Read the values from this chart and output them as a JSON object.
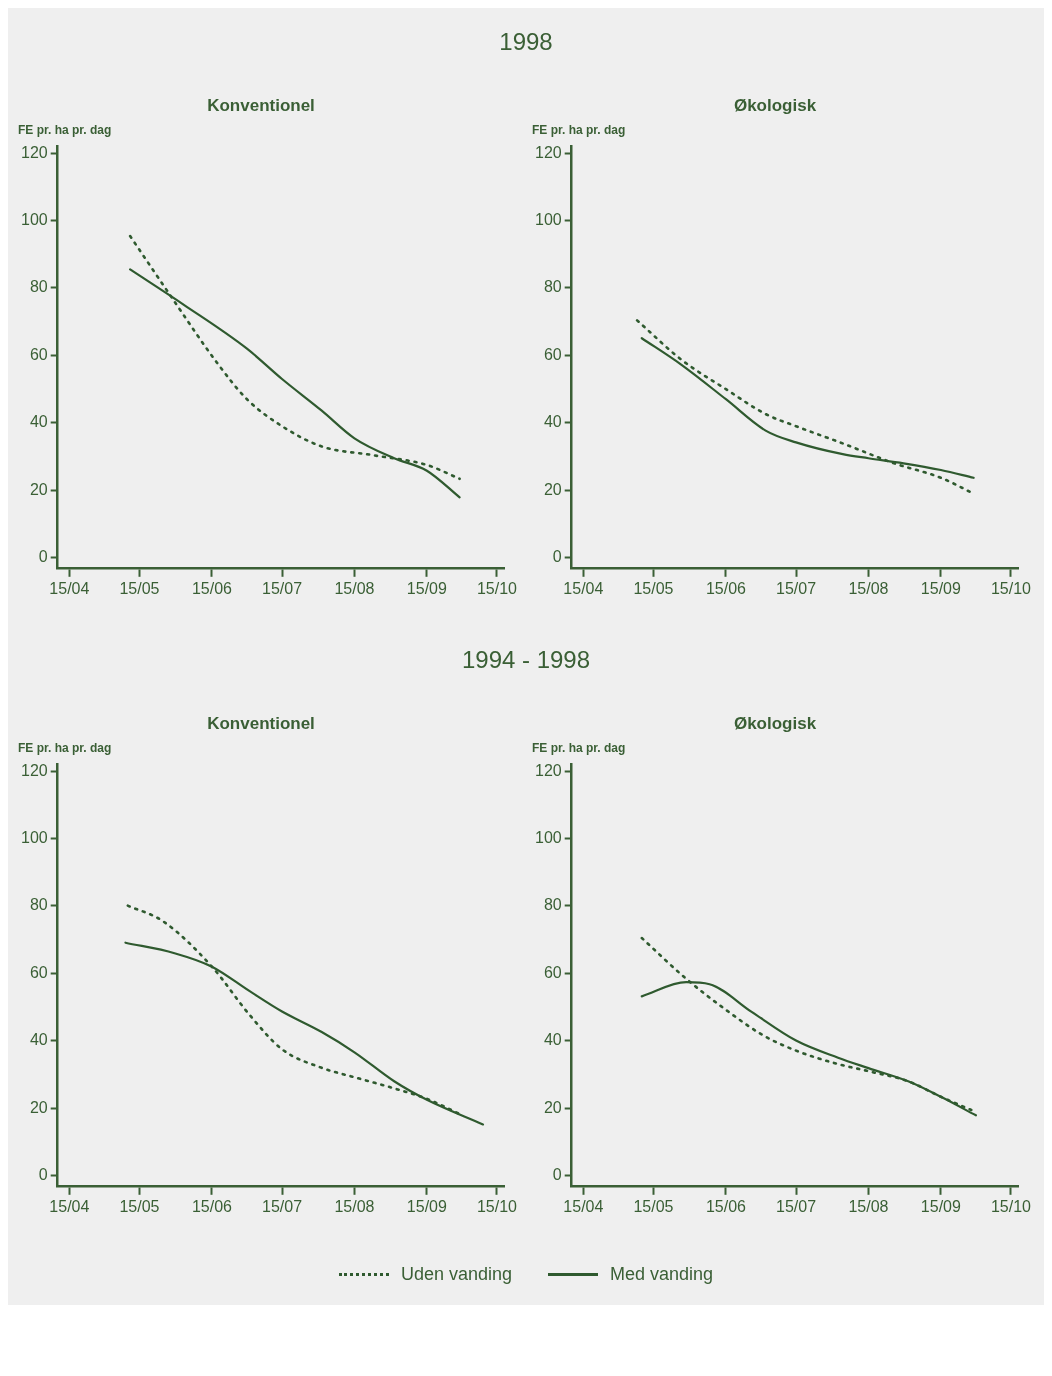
{
  "chart_data": [
    {
      "type": "line",
      "title": "Konventionel",
      "annotations": [
        "1998"
      ],
      "ylabel": "FE pr. ha pr. dag",
      "legend": "bottom",
      "xlim": [
        "--04-10",
        "--10-18"
      ],
      "xticks": [
        {
          "value": "--04-15",
          "label": "15/04"
        },
        {
          "value": "--05-15",
          "label": "15/05"
        },
        {
          "value": "--06-15",
          "label": "15/06"
        },
        {
          "value": "--07-15",
          "label": "15/07"
        },
        {
          "value": "--08-15",
          "label": "15/08"
        },
        {
          "value": "--09-15",
          "label": "15/09"
        },
        {
          "value": "--10-15",
          "label": "15/10"
        }
      ],
      "ylim": [
        -3,
        122
      ],
      "yticks": [
        0,
        20,
        40,
        60,
        80,
        100,
        120
      ],
      "grid": false,
      "marker": "none",
      "series": [
        {
          "name": "Uden vanding",
          "color": "#2f5a2f",
          "line_style": "dotted",
          "x": [
            "--05-11",
            "--05-28",
            "--06-17",
            "--06-30",
            "--07-15",
            "--08-01",
            "--08-23",
            "--09-15",
            "--09-29"
          ],
          "values": [
            95.4,
            78,
            58,
            47,
            39,
            33,
            30.4,
            27.5,
            23.4
          ]
        },
        {
          "name": "Med vanding",
          "color": "#2f5a2f",
          "line_style": "solid",
          "x": [
            "--05-11",
            "--06-03",
            "--06-30",
            "--07-15",
            "--08-01",
            "--08-15",
            "--09-01",
            "--09-15",
            "--09-29"
          ],
          "values": [
            85.5,
            75,
            62,
            53,
            43.6,
            35.4,
            29.5,
            25.8,
            17.9
          ]
        }
      ]
    },
    {
      "type": "line",
      "title": "Økologisk",
      "ylabel": "FE pr. ha pr. dag",
      "xlim": [
        "--04-10",
        "--10-18"
      ],
      "xticks": [
        {
          "value": "--04-15",
          "label": "15/04"
        },
        {
          "value": "--05-15",
          "label": "15/05"
        },
        {
          "value": "--06-15",
          "label": "15/06"
        },
        {
          "value": "--07-15",
          "label": "15/07"
        },
        {
          "value": "--08-15",
          "label": "15/08"
        },
        {
          "value": "--09-15",
          "label": "15/09"
        },
        {
          "value": "--10-15",
          "label": "15/10"
        }
      ],
      "ylim": [
        -3,
        122
      ],
      "yticks": [
        0,
        20,
        40,
        60,
        80,
        100,
        120
      ],
      "grid": false,
      "marker": "none",
      "series": [
        {
          "color": "#2f5a2f",
          "line_style": "dotted",
          "x": [
            "--05-08",
            "--05-27",
            "--06-15",
            "--07-02",
            "--07-15",
            "--08-04",
            "--08-26",
            "--09-15",
            "--09-29"
          ],
          "values": [
            70.4,
            58.7,
            50,
            42.6,
            39,
            33.9,
            28,
            23.7,
            19
          ]
        },
        {
          "color": "#2f5a2f",
          "line_style": "solid",
          "x": [
            "--05-10",
            "--05-27",
            "--06-15",
            "--07-02",
            "--07-15",
            "--08-04",
            "--08-15",
            "--08-30",
            "--09-15",
            "--09-29"
          ],
          "values": [
            65.1,
            57.2,
            47,
            37.7,
            34.2,
            30.7,
            29.5,
            28,
            26,
            23.7
          ]
        }
      ]
    },
    {
      "type": "line",
      "title": "Konventionel",
      "annotations": [
        "1994 - 1998"
      ],
      "ylabel": "FE pr. ha pr. dag",
      "xlim": [
        "--04-10",
        "--10-18"
      ],
      "xticks": [
        {
          "value": "--04-15",
          "label": "15/04"
        },
        {
          "value": "--05-15",
          "label": "15/05"
        },
        {
          "value": "--06-15",
          "label": "15/06"
        },
        {
          "value": "--07-15",
          "label": "15/07"
        },
        {
          "value": "--08-15",
          "label": "15/08"
        },
        {
          "value": "--09-15",
          "label": "15/09"
        },
        {
          "value": "--10-15",
          "label": "15/10"
        }
      ],
      "ylim": [
        -3,
        122
      ],
      "yticks": [
        0,
        20,
        40,
        60,
        80,
        100,
        120
      ],
      "grid": false,
      "marker": "none",
      "series": [
        {
          "color": "#2f5a2f",
          "line_style": "dotted",
          "x": [
            "--05-10",
            "--05-25",
            "--06-15",
            "--07-01",
            "--07-15",
            "--08-01",
            "--08-15",
            "--09-01",
            "--09-15",
            "--09-29"
          ],
          "values": [
            80.1,
            75.5,
            62,
            47.8,
            37.5,
            32,
            29.2,
            25.9,
            22.8,
            18.3
          ]
        },
        {
          "color": "#2f5a2f",
          "line_style": "solid",
          "x": [
            "--05-09",
            "--05-30",
            "--06-15",
            "--07-01",
            "--07-15",
            "--08-01",
            "--08-15",
            "--09-01",
            "--09-15",
            "--10-09"
          ],
          "values": [
            69.1,
            66,
            62,
            54.8,
            48.7,
            42.6,
            36.6,
            28,
            22.5,
            15.2
          ]
        }
      ]
    },
    {
      "type": "line",
      "title": "Økologisk",
      "ylabel": "FE pr. ha pr. dag",
      "xlim": [
        "--04-10",
        "--10-18"
      ],
      "xticks": [
        {
          "value": "--04-15",
          "label": "15/04"
        },
        {
          "value": "--05-15",
          "label": "15/05"
        },
        {
          "value": "--06-15",
          "label": "15/06"
        },
        {
          "value": "--07-15",
          "label": "15/07"
        },
        {
          "value": "--08-15",
          "label": "15/08"
        },
        {
          "value": "--09-15",
          "label": "15/09"
        },
        {
          "value": "--10-15",
          "label": "15/10"
        }
      ],
      "ylim": [
        -3,
        122
      ],
      "yticks": [
        0,
        20,
        40,
        60,
        80,
        100,
        120
      ],
      "grid": false,
      "marker": "none",
      "series": [
        {
          "color": "#2f5a2f",
          "line_style": "dotted",
          "x": [
            "--05-10",
            "--05-29",
            "--06-15",
            "--07-01",
            "--07-15",
            "--08-02",
            "--08-15",
            "--09-01",
            "--09-15",
            "--09-28"
          ],
          "values": [
            70.5,
            58.4,
            49.2,
            41.6,
            37.1,
            33.1,
            31,
            28,
            23.4,
            19.5
          ]
        },
        {
          "color": "#2f5a2f",
          "line_style": "solid",
          "x": [
            "--05-10",
            "--05-29",
            "--06-08",
            "--06-26",
            "--07-15",
            "--08-02",
            "--08-15",
            "--09-01",
            "--09-15",
            "--09-30"
          ],
          "values": [
            53.2,
            57.4,
            56.8,
            48.6,
            40.1,
            35,
            31.9,
            28,
            23.4,
            17.9
          ]
        }
      ]
    }
  ]
}
